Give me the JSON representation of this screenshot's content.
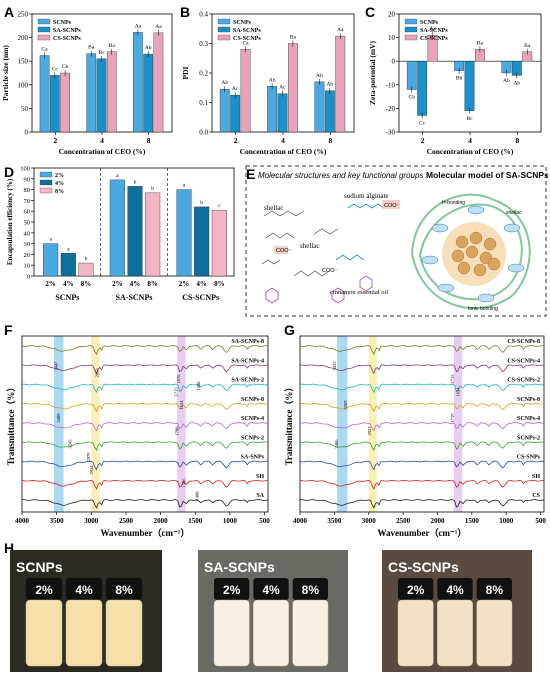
{
  "panels": {
    "A": "A",
    "B": "B",
    "C": "C",
    "D": "D",
    "E": "E",
    "F": "F",
    "G": "G",
    "H": "H"
  },
  "colors": {
    "scnps": "#4aa9e0",
    "sa": "#1890c8",
    "cs": "#e8a3b8",
    "sa_dark": "#0e6e9e",
    "cs_pink": "#f4b6c6"
  },
  "chart_data": [
    {
      "type": "bar",
      "panel": "A",
      "categories": [
        "2",
        "4",
        "8"
      ],
      "series": [
        {
          "name": "SCNPs",
          "values": [
            162,
            166,
            211
          ],
          "labels": [
            "Ca",
            "Ba",
            "Aa"
          ]
        },
        {
          "name": "SA-SCNPs",
          "values": [
            120,
            155,
            165
          ],
          "labels": [
            "Cc",
            "Bc",
            "Ab"
          ]
        },
        {
          "name": "CS-SCNPs",
          "values": [
            125,
            170,
            210
          ],
          "labels": [
            "Cb",
            "Ba",
            "Aa"
          ]
        }
      ],
      "xlabel": "Concentration of CEO (%)",
      "ylabel": "Particle size (nm)",
      "ylim": [
        0,
        250
      ],
      "yticks": [
        "0",
        "50",
        "100",
        "150",
        "200",
        "250"
      ]
    },
    {
      "type": "bar",
      "panel": "B",
      "categories": [
        "2",
        "4",
        "8"
      ],
      "series": [
        {
          "name": "SCNPs",
          "values": [
            0.145,
            0.155,
            0.17
          ],
          "labels": [
            "Ab",
            "Ab",
            "Ab"
          ]
        },
        {
          "name": "SA-SCNPs",
          "values": [
            0.125,
            0.13,
            0.14
          ],
          "labels": [
            "Ac",
            "Ac",
            "Ab"
          ]
        },
        {
          "name": "CS-SCNPs",
          "values": [
            0.28,
            0.3,
            0.325
          ],
          "labels": [
            "Ca",
            "Ba",
            "Aa"
          ]
        }
      ],
      "xlabel": "Concentration of CEO (%)",
      "ylabel": "PDI",
      "ylim": [
        0.0,
        0.4
      ],
      "yticks": [
        "0.0",
        "0.1",
        "0.2",
        "0.3",
        "0.4"
      ]
    },
    {
      "type": "bar",
      "panel": "C",
      "categories": [
        "2",
        "4",
        "8"
      ],
      "series": [
        {
          "name": "SCNPs",
          "values": [
            -12,
            -4,
            -5
          ],
          "labels": [
            "Cb",
            "Bb",
            "Ab"
          ]
        },
        {
          "name": "SA-SCNPs",
          "values": [
            -23,
            -21,
            -6
          ],
          "labels": [
            "Cc",
            "Bc",
            "Ab"
          ]
        },
        {
          "name": "CS-SCNPs",
          "values": [
            11,
            5,
            4
          ],
          "labels": [
            "Aa",
            "Ba",
            "Ba"
          ]
        }
      ],
      "xlabel": "Concentration of CEO (%)",
      "ylabel": "Zeta-potential (mV)",
      "ylim": [
        -30,
        20
      ],
      "yticks": [
        "-30",
        "-20",
        "-10",
        "0",
        "10",
        "20"
      ]
    },
    {
      "type": "bar",
      "panel": "D",
      "groups": [
        "SCNPs",
        "SA-SCNPs",
        "CS-SCNPs"
      ],
      "categories": [
        "2%",
        "4%",
        "8%"
      ],
      "series": [
        {
          "name": "2%",
          "values": [
            30,
            89,
            80
          ],
          "labels": [
            "a",
            "a",
            "a"
          ]
        },
        {
          "name": "4%",
          "values": [
            21,
            83,
            64
          ],
          "labels": [
            "a",
            "b",
            "b"
          ]
        },
        {
          "name": "8%",
          "values": [
            12,
            77,
            61
          ],
          "labels": [
            "b",
            "b",
            "c"
          ]
        }
      ],
      "ylabel": "Encapsulation efficiency (%)",
      "ylim": [
        0,
        100
      ],
      "yticks": [
        "0",
        "10",
        "20",
        "30",
        "40",
        "50",
        "60",
        "70",
        "80",
        "90",
        "100"
      ]
    },
    {
      "type": "line",
      "panel": "F",
      "xlabel": "Wavenumber（cm⁻¹）",
      "ylabel": "Transmittance（%）",
      "xticks": [
        "4000",
        "3500",
        "3000",
        "2500",
        "2000",
        "1500",
        "1000",
        "500"
      ],
      "series": [
        {
          "name": "SA-SCNPs-8",
          "color": "#7a7a2a"
        },
        {
          "name": "SA-SCNPs-4",
          "color": "#7a3d6a"
        },
        {
          "name": "SA-SCNPs-2",
          "color": "#19b5b5"
        },
        {
          "name": "SCNPs-8",
          "color": "#d4a017"
        },
        {
          "name": "SCNPs-4",
          "color": "#b06ad0"
        },
        {
          "name": "SCNPs-2",
          "color": "#3aa03a"
        },
        {
          "name": "SA-SNPs",
          "color": "#2a4aa8"
        },
        {
          "name": "SH",
          "color": "#d02020"
        },
        {
          "name": "SA",
          "color": "#222222"
        }
      ],
      "annotations": [
        "3447",
        "1676",
        "1715",
        "1634",
        "3409",
        "1700",
        "3245",
        "2979",
        "2934",
        "1596",
        "1408",
        "2852",
        "1388"
      ]
    },
    {
      "type": "line",
      "panel": "G",
      "xlabel": "Wavenumber（cm⁻¹）",
      "ylabel": "Transmittance（%）",
      "xticks": [
        "4000",
        "3500",
        "3000",
        "2500",
        "2000",
        "1500",
        "1000",
        "500"
      ],
      "series": [
        {
          "name": "CS-SCNPs-8",
          "color": "#7a7a2a"
        },
        {
          "name": "CS-SCNPs-4",
          "color": "#7a3d6a"
        },
        {
          "name": "CS-SCNPs-2",
          "color": "#19b5b5"
        },
        {
          "name": "SCNPs-8",
          "color": "#d4a017"
        },
        {
          "name": "SCNPs-4",
          "color": "#b06ad0"
        },
        {
          "name": "SCNPs-2",
          "color": "#3aa03a"
        },
        {
          "name": "CS-SNPs",
          "color": "#2a4aa8"
        },
        {
          "name": "SH",
          "color": "#d02020"
        },
        {
          "name": "CS",
          "color": "#222222"
        }
      ],
      "annotations": [
        "3432",
        "1715",
        "1634",
        "3269",
        "1719",
        "2923",
        "3406"
      ]
    }
  ],
  "legend": {
    "scnps": "SCNPs",
    "sa": "SA-SCNPs",
    "cs": "CS-SCNPs",
    "p2": "2%",
    "p4": "4%",
    "p8": "8%"
  },
  "panelE": {
    "left_title": "Molecular structures and key functional groups",
    "right_title": "Molecular model of SA-SCNPs",
    "labels": [
      "shellac",
      "sodium alginate",
      "shellac",
      "cinnamon essential oil"
    ],
    "chem": [
      "COO⁻",
      "COO⁻",
      "COO⁻",
      "H-bonding",
      "Ionic bonding",
      "shellac"
    ]
  },
  "panelH": {
    "groups": [
      {
        "name": "SCNPs",
        "pcts": [
          "2%",
          "4%",
          "8%"
        ]
      },
      {
        "name": "SA-SCNPs",
        "pcts": [
          "2%",
          "4%",
          "8%"
        ]
      },
      {
        "name": "CS-SCNPs",
        "pcts": [
          "2%",
          "4%",
          "8%"
        ]
      }
    ]
  }
}
